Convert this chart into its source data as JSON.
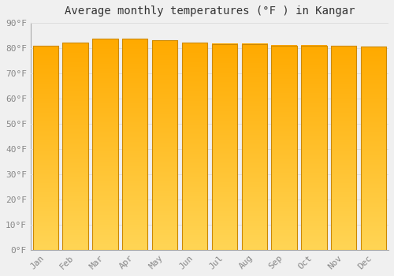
{
  "title": "Average monthly temperatures (°F ) in Kangar",
  "months": [
    "Jan",
    "Feb",
    "Mar",
    "Apr",
    "May",
    "Jun",
    "Jul",
    "Aug",
    "Sep",
    "Oct",
    "Nov",
    "Dec"
  ],
  "values": [
    81.0,
    82.2,
    83.8,
    83.8,
    83.1,
    82.2,
    81.7,
    81.7,
    81.1,
    81.1,
    81.0,
    80.6
  ],
  "bar_color_main": "#FFAA00",
  "bar_color_light": "#FFD555",
  "bar_edge_color": "#CC8800",
  "background_color": "#f0f0f0",
  "ylim": [
    0,
    90
  ],
  "yticks": [
    0,
    10,
    20,
    30,
    40,
    50,
    60,
    70,
    80,
    90
  ],
  "ytick_labels": [
    "0°F",
    "10°F",
    "20°F",
    "30°F",
    "40°F",
    "50°F",
    "60°F",
    "70°F",
    "80°F",
    "90°F"
  ],
  "grid_color": "#dddddd",
  "title_fontsize": 10,
  "tick_fontsize": 8,
  "font_family": "monospace",
  "bar_width": 0.85
}
